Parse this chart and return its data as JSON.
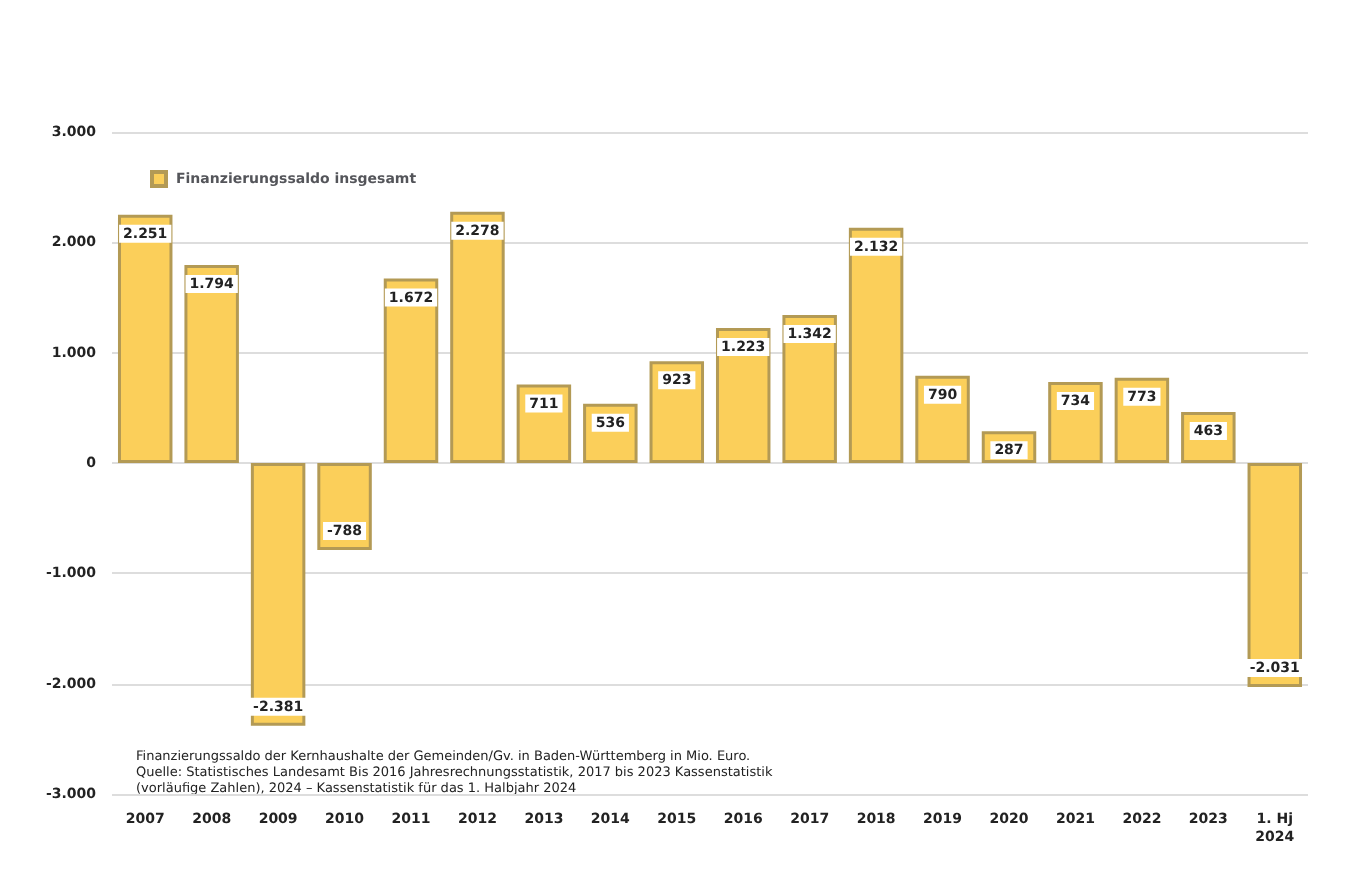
{
  "chart_data": {
    "type": "bar",
    "categories": [
      "2007",
      "2008",
      "2009",
      "2010",
      "2011",
      "2012",
      "2013",
      "2014",
      "2015",
      "2016",
      "2017",
      "2018",
      "2019",
      "2020",
      "2021",
      "2022",
      "2023",
      "1. Hj\n2024"
    ],
    "series": [
      {
        "name": "Finanzierungssaldo insgesamt",
        "color": "#fbcf5a",
        "values": [
          2251,
          1794,
          -2381,
          -788,
          1672,
          2278,
          711,
          536,
          923,
          1223,
          1342,
          2132,
          790,
          287,
          734,
          773,
          463,
          -2031
        ],
        "value_labels": [
          "2.251",
          "1.794",
          "-2.381",
          "-788",
          "1.672",
          "2.278",
          "711",
          "536",
          "923",
          "1.223",
          "1.342",
          "2.132",
          "790",
          "287",
          "734",
          "773",
          "463",
          "-2.031"
        ]
      }
    ],
    "ylim": [
      -3000,
      3000
    ],
    "yticks": [
      {
        "value": -3000,
        "label": "-3.000"
      },
      {
        "value": -2000,
        "label": "-2.000"
      },
      {
        "value": -1000,
        "label": "-1.000"
      },
      0,
      {
        "value": 1000,
        "label": "1.000"
      },
      {
        "value": 2000,
        "label": "2.000"
      },
      {
        "value": 3000,
        "label": "3.000"
      }
    ],
    "grid": "y",
    "legend": "top left",
    "annotations": [
      "Finanzierungssaldo der Kernhaushalte der Gemeinden/Gv. in Baden-Württemberg in Mio. Euro.\nQuelle: Statistisches Landesamt Bis 2016 Jahresrechnungsstatistik, 2017 bis 2023 Kassenstatistik\n(vorläufige Zahlen), 2024 – Kassenstatistik für das 1. Halbjahr 2024"
    ]
  }
}
